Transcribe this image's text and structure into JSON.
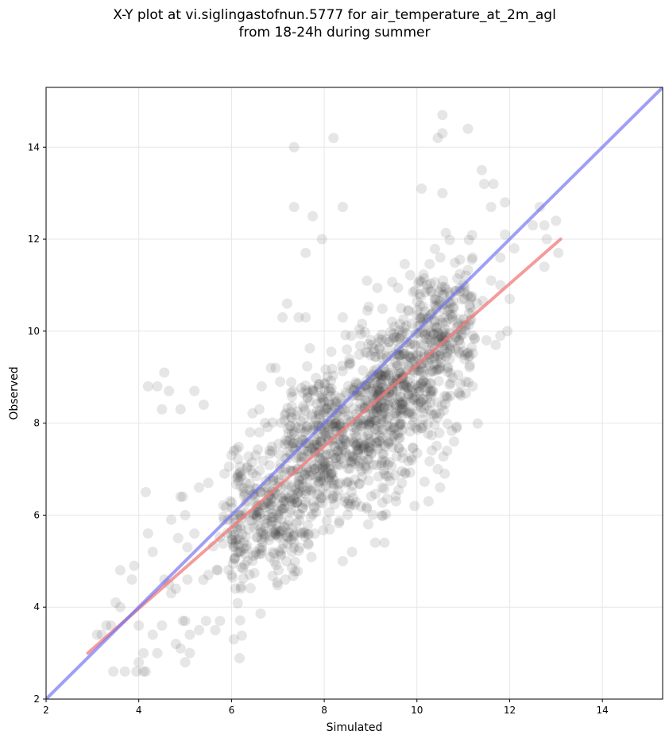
{
  "chart_data": {
    "type": "scatter",
    "title_line1": "X-Y plot at vi.siglingastofnun.5777 for air_temperature_at_2m_agl",
    "title_line2": "from 18-24h during summer",
    "xlabel": "Simulated",
    "ylabel": "Observed",
    "xlim": [
      2,
      15.3
    ],
    "ylim": [
      2,
      15.3
    ],
    "xticks": [
      2,
      4,
      6,
      8,
      10,
      12,
      14
    ],
    "yticks": [
      2,
      4,
      6,
      8,
      10,
      12,
      14
    ],
    "xtick_labels": [
      "2",
      "4",
      "6",
      "8",
      "10",
      "12",
      "14"
    ],
    "ytick_labels": [
      "2",
      "4",
      "6",
      "8",
      "10",
      "12",
      "14"
    ],
    "grid": true,
    "colors": {
      "points": "#333333",
      "identity_line": "#6b6bf0",
      "regression_line": "#f07a7a",
      "grid": "#e6e6e6"
    },
    "identity_line": {
      "x": [
        2,
        15.3
      ],
      "y": [
        2,
        15.3
      ]
    },
    "regression_line": {
      "x": [
        2.9,
        13.1
      ],
      "y": [
        3.0,
        12.0
      ]
    },
    "outlier_points": [
      [
        4.2,
        8.8
      ],
      [
        4.4,
        8.8
      ],
      [
        4.55,
        9.1
      ],
      [
        4.65,
        8.7
      ],
      [
        4.5,
        8.3
      ],
      [
        4.9,
        8.3
      ],
      [
        5.2,
        8.7
      ],
      [
        5.4,
        8.4
      ],
      [
        4.15,
        6.5
      ],
      [
        4.2,
        5.6
      ],
      [
        4.3,
        5.2
      ],
      [
        3.6,
        4.8
      ],
      [
        3.5,
        4.1
      ],
      [
        3.6,
        4.0
      ],
      [
        3.85,
        4.6
      ],
      [
        3.9,
        4.9
      ],
      [
        3.1,
        3.4
      ],
      [
        3.2,
        3.4
      ],
      [
        3.3,
        3.6
      ],
      [
        3.4,
        3.6
      ],
      [
        3.45,
        2.6
      ],
      [
        3.7,
        2.6
      ],
      [
        3.95,
        2.6
      ],
      [
        4.1,
        2.6
      ],
      [
        4.15,
        2.6
      ],
      [
        4.0,
        2.8
      ],
      [
        4.1,
        3.0
      ],
      [
        4.0,
        3.6
      ],
      [
        4.3,
        3.4
      ],
      [
        4.4,
        3.0
      ],
      [
        4.5,
        3.6
      ],
      [
        4.9,
        3.1
      ],
      [
        5.0,
        2.8
      ],
      [
        5.1,
        3.0
      ],
      [
        5.1,
        3.4
      ],
      [
        5.3,
        3.5
      ],
      [
        5.45,
        3.7
      ],
      [
        5.65,
        3.5
      ],
      [
        5.75,
        3.7
      ],
      [
        6.05,
        3.3
      ],
      [
        4.8,
        3.2
      ],
      [
        4.95,
        3.7
      ],
      [
        5.0,
        3.7
      ],
      [
        7.35,
        14.0
      ],
      [
        8.2,
        14.2
      ],
      [
        7.35,
        12.7
      ],
      [
        7.75,
        12.5
      ],
      [
        8.4,
        12.7
      ],
      [
        7.95,
        12.0
      ],
      [
        7.6,
        11.7
      ],
      [
        10.55,
        14.7
      ],
      [
        10.45,
        14.2
      ],
      [
        10.55,
        14.3
      ],
      [
        11.1,
        14.4
      ],
      [
        10.1,
        13.1
      ],
      [
        10.55,
        13.0
      ],
      [
        11.4,
        13.5
      ],
      [
        11.45,
        13.2
      ],
      [
        11.65,
        13.2
      ],
      [
        11.6,
        12.7
      ],
      [
        11.9,
        12.8
      ],
      [
        12.65,
        12.7
      ],
      [
        12.75,
        12.3
      ],
      [
        12.8,
        12.0
      ],
      [
        12.5,
        12.3
      ],
      [
        13.0,
        12.4
      ],
      [
        13.05,
        11.7
      ],
      [
        12.75,
        11.4
      ],
      [
        11.9,
        12.1
      ],
      [
        12.1,
        11.8
      ],
      [
        11.3,
        10.6
      ],
      [
        11.6,
        11.1
      ],
      [
        11.8,
        11.0
      ],
      [
        12.0,
        10.7
      ],
      [
        11.95,
        10.0
      ],
      [
        11.8,
        9.9
      ],
      [
        11.7,
        9.7
      ],
      [
        11.2,
        8.8
      ],
      [
        11.05,
        8.9
      ],
      [
        11.5,
        9.8
      ],
      [
        11.2,
        11.6
      ],
      [
        11.8,
        11.6
      ],
      [
        7.1,
        10.3
      ],
      [
        7.2,
        10.6
      ],
      [
        7.45,
        10.3
      ],
      [
        7.6,
        10.3
      ],
      [
        6.85,
        9.2
      ],
      [
        6.95,
        9.2
      ],
      [
        6.65,
        8.8
      ],
      [
        6.6,
        8.3
      ],
      [
        7.05,
        8.9
      ],
      [
        6.6,
        7.8
      ],
      [
        6.4,
        7.8
      ],
      [
        6.0,
        7.3
      ],
      [
        6.05,
        7.4
      ],
      [
        5.85,
        6.9
      ],
      [
        5.5,
        6.7
      ],
      [
        5.3,
        6.6
      ],
      [
        5.2,
        5.6
      ],
      [
        5.0,
        6.0
      ],
      [
        4.85,
        5.5
      ],
      [
        4.9,
        6.4
      ],
      [
        4.95,
        6.4
      ],
      [
        4.7,
        5.9
      ],
      [
        5.05,
        4.6
      ],
      [
        4.7,
        4.3
      ],
      [
        4.65,
        4.5
      ],
      [
        4.55,
        4.6
      ],
      [
        4.8,
        4.4
      ],
      [
        5.05,
        5.3
      ],
      [
        5.5,
        4.7
      ],
      [
        5.7,
        4.8
      ],
      [
        6.0,
        4.7
      ],
      [
        6.2,
        4.4
      ],
      [
        9.3,
        5.4
      ],
      [
        9.1,
        5.4
      ],
      [
        8.95,
        5.8
      ],
      [
        8.6,
        5.2
      ],
      [
        8.4,
        5.0
      ],
      [
        7.3,
        5.2
      ],
      [
        9.25,
        6.6
      ],
      [
        9.55,
        6.3
      ],
      [
        9.95,
        6.2
      ],
      [
        10.25,
        6.3
      ],
      [
        10.5,
        6.6
      ],
      [
        10.6,
        6.9
      ],
      [
        10.45,
        7.0
      ],
      [
        9.75,
        6.9
      ],
      [
        10.65,
        7.4
      ],
      [
        10.8,
        7.6
      ]
    ],
    "cluster_centers": [
      [
        7.8,
        6.8
      ],
      [
        8.3,
        7.5
      ],
      [
        8.8,
        8.1
      ],
      [
        9.2,
        8.6
      ],
      [
        9.7,
        9.0
      ],
      [
        10.3,
        9.4
      ],
      [
        10.7,
        9.8
      ],
      [
        7.5,
        7.2
      ],
      [
        8.6,
        7.0
      ],
      [
        9.5,
        8.2
      ],
      [
        10.0,
        8.4
      ],
      [
        8.0,
        8.3
      ],
      [
        9.0,
        9.5
      ],
      [
        10.1,
        10.5
      ],
      [
        6.7,
        6.0
      ],
      [
        7.2,
        5.7
      ],
      [
        6.4,
        5.3
      ],
      [
        9.2,
        7.3
      ]
    ]
  }
}
